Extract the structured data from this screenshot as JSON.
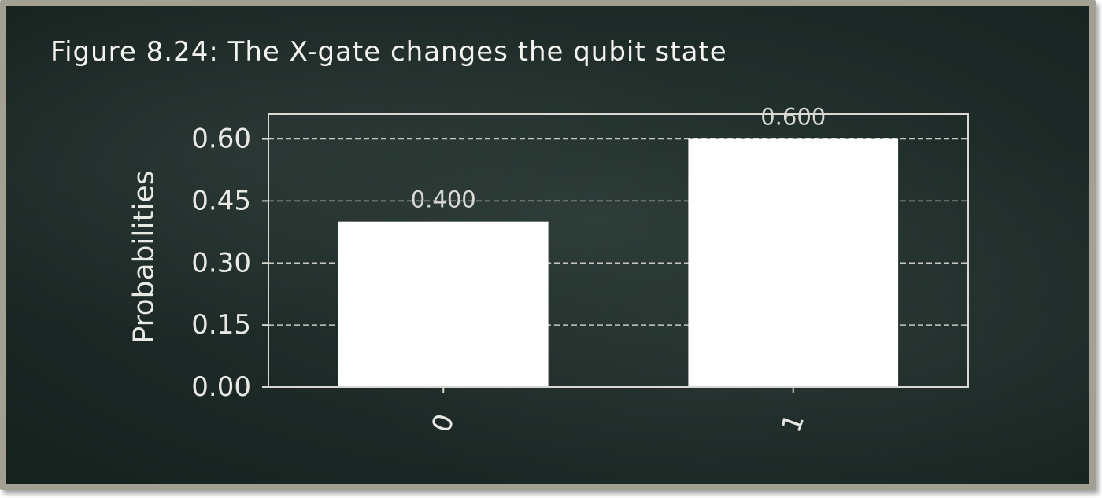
{
  "figure": {
    "title": "Figure 8.24: The X-gate changes the qubit state"
  },
  "chart_data": {
    "type": "bar",
    "categories": [
      "0",
      "1"
    ],
    "values": [
      0.4,
      0.6
    ],
    "data_labels": [
      "0.400",
      "0.600"
    ],
    "ylabel": "Probabilities",
    "xlabel": "",
    "ylim": [
      0,
      0.66
    ],
    "yticks": [
      0.0,
      0.15,
      0.3,
      0.45,
      0.6
    ],
    "ytick_labels": [
      "0.00",
      "0.15",
      "0.30",
      "0.45",
      "0.60"
    ],
    "grid": true,
    "bar_color": "#ffffff",
    "background_color": "#1d2a27",
    "text_color": "#e9e9e4"
  }
}
